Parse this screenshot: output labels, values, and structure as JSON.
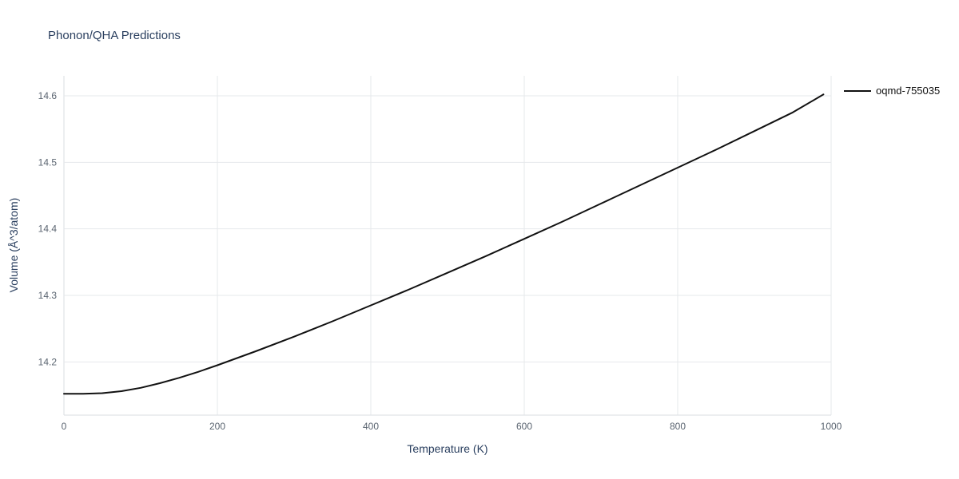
{
  "chart_data": {
    "type": "line",
    "title": "Phonon/QHA Predictions",
    "xlabel": "Temperature (K)",
    "ylabel": "Volume (Å^3/atom)",
    "xlim": [
      0,
      1000
    ],
    "ylim": [
      14.12,
      14.63
    ],
    "x_ticks": [
      0,
      200,
      400,
      600,
      800,
      1000
    ],
    "y_ticks": [
      14.2,
      14.3,
      14.4,
      14.5,
      14.6
    ],
    "grid": true,
    "legend_position": "top-right-outside",
    "series": [
      {
        "name": "oqmd-755035",
        "color": "#111111",
        "x": [
          0,
          25,
          50,
          75,
          100,
          125,
          150,
          175,
          200,
          250,
          300,
          350,
          400,
          450,
          500,
          550,
          600,
          650,
          700,
          750,
          800,
          850,
          900,
          950,
          990
        ],
        "y": [
          14.152,
          14.152,
          14.153,
          14.156,
          14.161,
          14.168,
          14.176,
          14.185,
          14.195,
          14.216,
          14.238,
          14.261,
          14.285,
          14.309,
          14.334,
          14.359,
          14.385,
          14.411,
          14.438,
          14.465,
          14.492,
          14.519,
          14.547,
          14.575,
          14.602
        ]
      }
    ]
  },
  "colors": {
    "title": "#2a3f5f",
    "axis_label": "#2a3f5f",
    "tick_label": "#5a6470",
    "grid": "#e6e8eb",
    "axis_line": "#d9dde2",
    "background": "#ffffff"
  }
}
